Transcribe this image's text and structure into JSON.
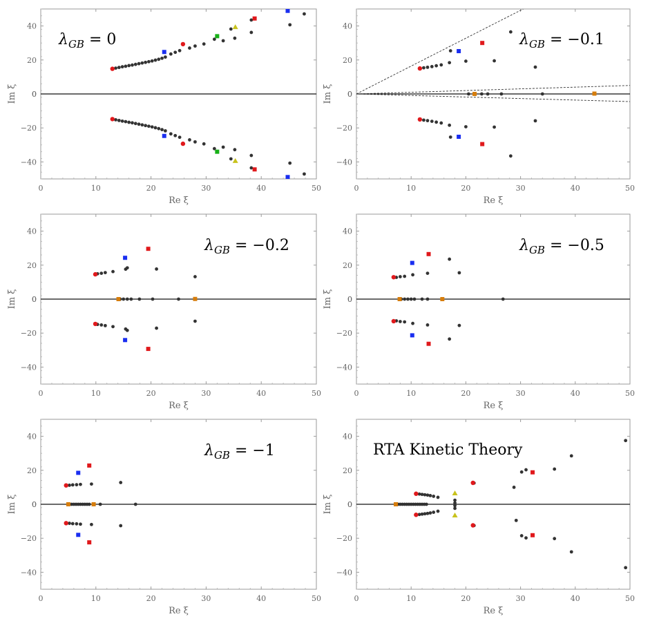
{
  "figure": {
    "colors": {
      "red": "#e0191c",
      "blue": "#1a2ef0",
      "green": "#16b016",
      "olive": "#c8c21c",
      "orange": "#d67d0c",
      "black": "#333333"
    }
  },
  "chart_data": [
    {
      "type": "scatter",
      "title_main": "λ",
      "title_sub": "GB",
      "title_rest": " = 0",
      "xlabel": "Re ξ",
      "ylabel": "Im ξ",
      "xlim": [
        0,
        50
      ],
      "ylim": [
        -50,
        50
      ],
      "xticks": [
        0,
        10,
        20,
        30,
        40,
        50
      ],
      "yticks": [
        -40,
        -20,
        0,
        20,
        40
      ],
      "rays": [],
      "black_points": [
        [
          13.6,
          15.2
        ],
        [
          14.2,
          15.6
        ],
        [
          14.8,
          16.0
        ],
        [
          15.4,
          16.3
        ],
        [
          16.0,
          16.7
        ],
        [
          16.6,
          17.0
        ],
        [
          17.2,
          17.4
        ],
        [
          17.8,
          17.8
        ],
        [
          18.4,
          18.2
        ],
        [
          19.0,
          18.6
        ],
        [
          19.6,
          19.0
        ],
        [
          20.2,
          19.4
        ],
        [
          20.8,
          19.9
        ],
        [
          21.4,
          20.4
        ],
        [
          22.0,
          21.0
        ],
        [
          22.6,
          21.7
        ],
        [
          23.6,
          23.5
        ],
        [
          24.4,
          24.5
        ],
        [
          25.2,
          25.5
        ],
        [
          27.0,
          27.0
        ],
        [
          28.0,
          28.2
        ],
        [
          29.6,
          29.4
        ],
        [
          31.5,
          32.2
        ],
        [
          33.1,
          31.3
        ],
        [
          34.5,
          38.2
        ],
        [
          35.2,
          32.8
        ],
        [
          38.2,
          43.5
        ],
        [
          38.2,
          36.2
        ],
        [
          45.2,
          40.7
        ],
        [
          47.8,
          47.1
        ],
        [
          13.6,
          -15.2
        ],
        [
          14.2,
          -15.6
        ],
        [
          14.8,
          -16.0
        ],
        [
          15.4,
          -16.3
        ],
        [
          16.0,
          -16.7
        ],
        [
          16.6,
          -17.0
        ],
        [
          17.2,
          -17.4
        ],
        [
          17.8,
          -17.8
        ],
        [
          18.4,
          -18.2
        ],
        [
          19.0,
          -18.6
        ],
        [
          19.6,
          -19.0
        ],
        [
          20.2,
          -19.4
        ],
        [
          20.8,
          -19.9
        ],
        [
          21.4,
          -20.4
        ],
        [
          22.0,
          -21.0
        ],
        [
          22.6,
          -21.7
        ],
        [
          23.6,
          -23.5
        ],
        [
          24.4,
          -24.5
        ],
        [
          25.2,
          -25.5
        ],
        [
          27.0,
          -27.0
        ],
        [
          28.0,
          -28.2
        ],
        [
          29.6,
          -29.4
        ],
        [
          31.5,
          -32.2
        ],
        [
          33.1,
          -31.3
        ],
        [
          34.5,
          -38.2
        ],
        [
          35.2,
          -32.8
        ],
        [
          38.2,
          -43.5
        ],
        [
          38.2,
          -36.2
        ],
        [
          45.2,
          -40.7
        ],
        [
          47.8,
          -47.1
        ]
      ],
      "red_dots": [
        [
          13.0,
          14.8
        ],
        [
          25.8,
          29.3
        ],
        [
          13.0,
          -14.8
        ],
        [
          25.8,
          -29.3
        ]
      ],
      "squares": [
        {
          "x": 22.4,
          "y": 24.7,
          "c": "blue"
        },
        {
          "x": 22.4,
          "y": -24.7,
          "c": "blue"
        },
        {
          "x": 32.0,
          "y": 34.0,
          "c": "green"
        },
        {
          "x": 32.0,
          "y": -34.0,
          "c": "green"
        },
        {
          "x": 38.8,
          "y": 44.4,
          "c": "red"
        },
        {
          "x": 38.8,
          "y": -44.4,
          "c": "red"
        },
        {
          "x": 44.8,
          "y": 48.9,
          "c": "blue"
        },
        {
          "x": 44.8,
          "y": -48.9,
          "c": "blue"
        }
      ],
      "triangles": [
        {
          "x": 35.3,
          "y": 39.4,
          "c": "olive"
        },
        {
          "x": 35.3,
          "y": -39.4,
          "c": "olive"
        }
      ]
    },
    {
      "type": "scatter",
      "title_main": "λ",
      "title_sub": "GB",
      "title_rest": " = −0.1",
      "xlabel": "Re ξ",
      "ylabel": "Im ξ",
      "xlim": [
        0,
        50
      ],
      "ylim": [
        -50,
        50
      ],
      "xticks": [
        0,
        10,
        20,
        30,
        40,
        50
      ],
      "yticks": [
        -40,
        -20,
        0,
        20,
        40
      ],
      "rays": [
        [
          1,
          1.64
        ],
        [
          1,
          0.1
        ],
        [
          1,
          -0.09
        ]
      ],
      "black_points": [
        [
          12.3,
          15.4
        ],
        [
          13.0,
          15.7
        ],
        [
          13.8,
          16.1
        ],
        [
          14.6,
          16.6
        ],
        [
          15.5,
          17.1
        ],
        [
          17.0,
          18.4
        ],
        [
          17.2,
          25.4
        ],
        [
          20.0,
          19.3
        ],
        [
          25.2,
          19.5
        ],
        [
          28.2,
          36.5
        ],
        [
          32.7,
          15.8
        ],
        [
          12.3,
          -15.4
        ],
        [
          13.0,
          -15.7
        ],
        [
          13.8,
          -16.1
        ],
        [
          14.6,
          -16.6
        ],
        [
          15.5,
          -17.1
        ],
        [
          17.0,
          -18.4
        ],
        [
          17.2,
          -25.4
        ],
        [
          20.0,
          -19.3
        ],
        [
          25.2,
          -19.5
        ],
        [
          28.2,
          -36.5
        ],
        [
          32.7,
          -15.8
        ],
        [
          20.5,
          0
        ],
        [
          22.9,
          0
        ],
        [
          24.0,
          0
        ],
        [
          26.5,
          0
        ],
        [
          34.0,
          0
        ]
      ],
      "red_dots": [
        [
          11.6,
          15.0
        ],
        [
          11.6,
          -15.0
        ]
      ],
      "squares": [
        {
          "x": 18.7,
          "y": 25.2,
          "c": "blue"
        },
        {
          "x": 18.7,
          "y": -25.2,
          "c": "blue"
        },
        {
          "x": 23.0,
          "y": 30.0,
          "c": "red"
        },
        {
          "x": 23.0,
          "y": -29.5,
          "c": "red"
        },
        {
          "x": 21.6,
          "y": 0,
          "c": "orange"
        },
        {
          "x": 43.5,
          "y": 0.2,
          "c": "orange"
        }
      ],
      "triangles": []
    },
    {
      "type": "scatter",
      "title_main": "λ",
      "title_sub": "GB",
      "title_rest": " = −0.2",
      "xlabel": "Re ξ",
      "ylabel": "Im ξ",
      "xlim": [
        0,
        50
      ],
      "ylim": [
        -50,
        50
      ],
      "xticks": [
        0,
        10,
        20,
        30,
        40,
        50
      ],
      "yticks": [
        -40,
        -20,
        0,
        20,
        40
      ],
      "rays": [],
      "black_points": [
        [
          10.3,
          14.9
        ],
        [
          11.0,
          15.2
        ],
        [
          11.7,
          15.6
        ],
        [
          13.1,
          16.2
        ],
        [
          15.4,
          17.6
        ],
        [
          15.7,
          18.4
        ],
        [
          21.0,
          17.7
        ],
        [
          28.0,
          13.2
        ],
        [
          10.3,
          -14.9
        ],
        [
          11.0,
          -15.2
        ],
        [
          11.7,
          -15.6
        ],
        [
          13.1,
          -16.2
        ],
        [
          15.4,
          -17.6
        ],
        [
          15.7,
          -18.4
        ],
        [
          21.0,
          -17.1
        ],
        [
          28.0,
          -13.0
        ],
        [
          14.4,
          0
        ],
        [
          15.0,
          0
        ],
        [
          15.7,
          0
        ],
        [
          16.4,
          0
        ],
        [
          17.9,
          0
        ],
        [
          20.3,
          0
        ],
        [
          25.0,
          0
        ]
      ],
      "red_dots": [
        [
          9.9,
          14.6
        ],
        [
          9.9,
          -14.6
        ]
      ],
      "squares": [
        {
          "x": 15.3,
          "y": 24.3,
          "c": "blue"
        },
        {
          "x": 15.3,
          "y": -24.1,
          "c": "blue"
        },
        {
          "x": 19.5,
          "y": 29.6,
          "c": "red"
        },
        {
          "x": 19.5,
          "y": -29.3,
          "c": "red"
        },
        {
          "x": 14.1,
          "y": 0,
          "c": "orange"
        },
        {
          "x": 28.0,
          "y": 0.1,
          "c": "orange"
        }
      ],
      "triangles": []
    },
    {
      "type": "scatter",
      "title_main": "λ",
      "title_sub": "GB",
      "title_rest": " = −0.5",
      "xlabel": "Re ξ",
      "ylabel": "Im ξ",
      "xlim": [
        0,
        50
      ],
      "ylim": [
        -50,
        50
      ],
      "xticks": [
        0,
        10,
        20,
        30,
        40,
        50
      ],
      "yticks": [
        -40,
        -20,
        0,
        20,
        40
      ],
      "rays": [],
      "black_points": [
        [
          7.3,
          12.8
        ],
        [
          8.0,
          13.2
        ],
        [
          8.8,
          13.4
        ],
        [
          10.3,
          14.3
        ],
        [
          13.0,
          15.2
        ],
        [
          17.0,
          23.5
        ],
        [
          18.8,
          15.5
        ],
        [
          7.3,
          -12.8
        ],
        [
          8.0,
          -13.2
        ],
        [
          8.8,
          -13.4
        ],
        [
          10.3,
          -14.3
        ],
        [
          13.0,
          -15.2
        ],
        [
          17.0,
          -23.5
        ],
        [
          18.8,
          -15.5
        ],
        [
          8.2,
          0
        ],
        [
          8.8,
          0
        ],
        [
          9.4,
          0
        ],
        [
          10.0,
          0
        ],
        [
          10.6,
          0
        ],
        [
          12.0,
          0
        ],
        [
          13.0,
          0
        ],
        [
          26.8,
          0
        ]
      ],
      "red_dots": [
        [
          6.8,
          12.9
        ],
        [
          6.8,
          -13.0
        ]
      ],
      "squares": [
        {
          "x": 10.2,
          "y": 21.3,
          "c": "blue"
        },
        {
          "x": 10.2,
          "y": -21.3,
          "c": "blue"
        },
        {
          "x": 13.2,
          "y": 26.5,
          "c": "red"
        },
        {
          "x": 13.2,
          "y": -26.3,
          "c": "red"
        },
        {
          "x": 7.9,
          "y": 0,
          "c": "orange"
        },
        {
          "x": 15.7,
          "y": 0,
          "c": "orange"
        }
      ],
      "triangles": []
    },
    {
      "type": "scatter",
      "title_main": "λ",
      "title_sub": "GB",
      "title_rest": " = −1",
      "xlabel": "Re ξ",
      "ylabel": "Im ξ",
      "xlim": [
        0,
        50
      ],
      "ylim": [
        -50,
        50
      ],
      "xticks": [
        0,
        10,
        20,
        30,
        40,
        50
      ],
      "yticks": [
        -40,
        -20,
        0,
        20,
        40
      ],
      "rays": [],
      "black_points": [
        [
          5.2,
          11.2
        ],
        [
          5.8,
          11.4
        ],
        [
          6.5,
          11.5
        ],
        [
          7.2,
          11.7
        ],
        [
          9.2,
          11.9
        ],
        [
          14.5,
          12.8
        ],
        [
          5.2,
          -11.2
        ],
        [
          5.8,
          -11.4
        ],
        [
          6.5,
          -11.5
        ],
        [
          7.2,
          -11.7
        ],
        [
          9.2,
          -11.9
        ],
        [
          14.5,
          -12.6
        ],
        [
          5.6,
          0
        ],
        [
          6.0,
          0
        ],
        [
          6.4,
          0
        ],
        [
          6.8,
          0
        ],
        [
          7.2,
          0
        ],
        [
          7.6,
          0
        ],
        [
          8.0,
          0
        ],
        [
          8.4,
          0
        ],
        [
          8.8,
          0
        ],
        [
          10.8,
          0
        ],
        [
          17.2,
          0
        ]
      ],
      "red_dots": [
        [
          4.6,
          11.1
        ],
        [
          4.6,
          -11.1
        ]
      ],
      "squares": [
        {
          "x": 6.8,
          "y": 18.5,
          "c": "blue"
        },
        {
          "x": 6.8,
          "y": -18.0,
          "c": "blue"
        },
        {
          "x": 8.8,
          "y": 22.8,
          "c": "red"
        },
        {
          "x": 8.8,
          "y": -22.4,
          "c": "red"
        },
        {
          "x": 5.0,
          "y": 0,
          "c": "orange"
        },
        {
          "x": 9.6,
          "y": 0,
          "c": "orange"
        }
      ],
      "triangles": []
    },
    {
      "type": "scatter",
      "title_main": "RTA Kinetic Theory",
      "title_sub": "",
      "title_rest": "",
      "xlabel": "Re ξ",
      "ylabel": "Im ξ",
      "xlim": [
        0,
        50
      ],
      "ylim": [
        -50,
        50
      ],
      "xticks": [
        0,
        10,
        20,
        30,
        40,
        50
      ],
      "yticks": [
        -40,
        -20,
        0,
        20,
        40
      ],
      "rays": [],
      "black_points": [
        [
          11.5,
          6.0
        ],
        [
          12.0,
          5.8
        ],
        [
          12.5,
          5.6
        ],
        [
          13.0,
          5.4
        ],
        [
          13.5,
          5.1
        ],
        [
          14.1,
          4.7
        ],
        [
          14.9,
          4.1
        ],
        [
          18.0,
          2.4
        ],
        [
          18.0,
          0.8
        ],
        [
          21.5,
          12.5
        ],
        [
          28.8,
          10.0
        ],
        [
          29.2,
          -9.5
        ],
        [
          30.2,
          19.0
        ],
        [
          31.0,
          20.3
        ],
        [
          30.2,
          -18.5
        ],
        [
          31.0,
          -19.8
        ],
        [
          36.2,
          20.7
        ],
        [
          36.2,
          -20.2
        ],
        [
          39.3,
          28.5
        ],
        [
          39.3,
          -28.0
        ],
        [
          49.2,
          37.5
        ],
        [
          49.2,
          -37.3
        ],
        [
          11.5,
          -6.0
        ],
        [
          12.0,
          -5.8
        ],
        [
          12.5,
          -5.6
        ],
        [
          13.0,
          -5.4
        ],
        [
          13.5,
          -5.1
        ],
        [
          14.1,
          -4.7
        ],
        [
          14.9,
          -4.1
        ],
        [
          18.0,
          -2.4
        ],
        [
          18.0,
          -0.8
        ],
        [
          21.5,
          -12.5
        ],
        [
          7.6,
          0
        ],
        [
          8.0,
          0
        ],
        [
          8.4,
          0
        ],
        [
          8.8,
          0
        ],
        [
          9.2,
          0
        ],
        [
          9.6,
          0
        ],
        [
          10.0,
          0
        ],
        [
          10.4,
          0
        ],
        [
          10.8,
          0
        ],
        [
          11.2,
          0
        ],
        [
          11.6,
          0
        ],
        [
          12.0,
          0
        ],
        [
          12.4,
          0
        ],
        [
          12.8,
          0
        ]
      ],
      "red_dots": [
        [
          10.9,
          6.2
        ],
        [
          21.3,
          12.6
        ],
        [
          10.9,
          -6.2
        ],
        [
          21.3,
          -12.4
        ]
      ],
      "squares": [
        {
          "x": 32.2,
          "y": 18.8,
          "c": "red"
        },
        {
          "x": 32.2,
          "y": -18.2,
          "c": "red"
        },
        {
          "x": 7.2,
          "y": 0,
          "c": "orange"
        }
      ],
      "triangles": [
        {
          "x": 18.0,
          "y": 6.5,
          "c": "olive"
        },
        {
          "x": 18.0,
          "y": -6.5,
          "c": "olive"
        }
      ]
    }
  ]
}
